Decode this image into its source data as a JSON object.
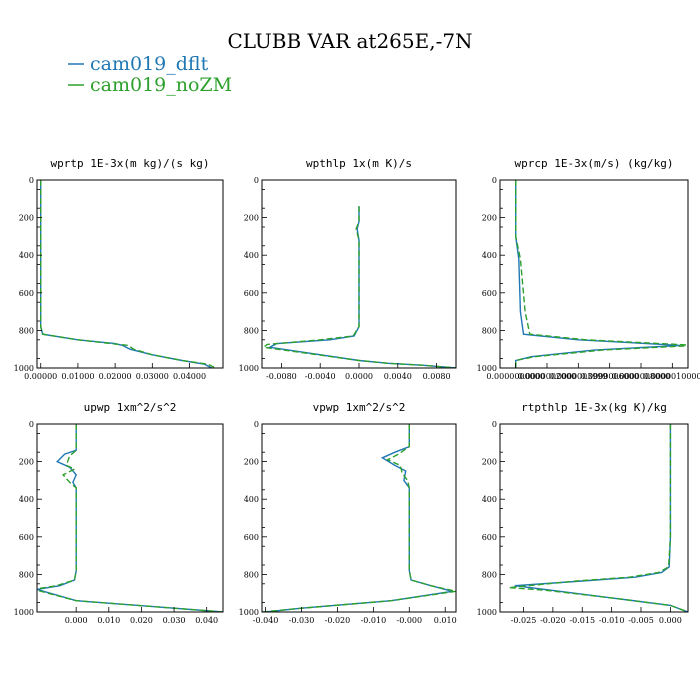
{
  "figure": {
    "title": "CLUBB VAR at265E,-7N",
    "legend": [
      {
        "label": "cam019_dflt",
        "color": "#1f77b4",
        "dash": false
      },
      {
        "label": "cam019_noZM",
        "color": "#2ca02c",
        "dash": true
      }
    ]
  },
  "chart_data": [
    {
      "type": "line",
      "title": "wprtp  1E-3x(m kg)/(s kg)",
      "xlim": [
        -0.001,
        0.049
      ],
      "ylim": [
        1000,
        0
      ],
      "y_inverted": true,
      "xticks": [
        0,
        0.01,
        0.02,
        0.03,
        0.04
      ],
      "xtick_labels": [
        "0.00000",
        "0.01000",
        "0.02000",
        "0.03000",
        "0.04000"
      ],
      "yticks": [
        0,
        200,
        400,
        600,
        800,
        1000
      ],
      "ytick_labels": [
        "0",
        "200",
        "400",
        "600",
        "800",
        "1000"
      ],
      "series": [
        {
          "name": "cam019_dflt",
          "x": [
            0,
            0,
            0,
            0.0005,
            0.01,
            0.02,
            0.022,
            0.024,
            0.03,
            0.038,
            0.044,
            0.046
          ],
          "y": [
            0,
            600,
            780,
            820,
            850,
            870,
            880,
            900,
            930,
            960,
            980,
            1000
          ]
        },
        {
          "name": "cam019_noZM",
          "x": [
            0,
            0,
            0,
            0.0006,
            0.01,
            0.019,
            0.0235,
            0.025,
            0.03,
            0.038,
            0.045,
            0.047
          ],
          "y": [
            0,
            600,
            780,
            820,
            850,
            870,
            880,
            900,
            930,
            960,
            980,
            1000
          ]
        }
      ]
    },
    {
      "type": "line",
      "title": "wpthlp  1x(m K)/s",
      "xlim": [
        -0.01,
        0.01
      ],
      "ylim": [
        1000,
        0
      ],
      "y_inverted": true,
      "xticks": [
        -0.008,
        -0.004,
        0,
        0.004,
        0.008
      ],
      "xtick_labels": [
        "-0.0080",
        "-0.0040",
        "0.0000",
        "0.0040",
        "0.0080"
      ],
      "yticks": [
        0,
        200,
        400,
        600,
        800,
        1000
      ],
      "ytick_labels": [
        "0",
        "200",
        "400",
        "600",
        "800",
        "1000"
      ],
      "series": [
        {
          "name": "cam019_dflt",
          "x": [
            0,
            0,
            -0.0002,
            0,
            0,
            -0.0005,
            -0.003,
            -0.0085,
            -0.0092,
            0,
            0.003,
            0.0065,
            0.01
          ],
          "y": [
            140,
            220,
            260,
            320,
            780,
            830,
            850,
            870,
            890,
            960,
            975,
            985,
            1000
          ]
        },
        {
          "name": "cam019_noZM",
          "x": [
            0,
            0,
            -0.0003,
            0,
            0,
            -0.0006,
            -0.004,
            -0.0095,
            -0.0098,
            0,
            0.003,
            0.0065,
            0.01
          ],
          "y": [
            140,
            220,
            260,
            320,
            780,
            830,
            850,
            875,
            890,
            960,
            975,
            985,
            1000
          ]
        }
      ]
    },
    {
      "type": "line",
      "title": "wprcp  1E-3x(m/s) (kg/kg)",
      "xlim": [
        -1e-07,
        1.1e-06
      ],
      "ylim": [
        1000,
        0
      ],
      "y_inverted": true,
      "xticks": [
        0,
        2e-07,
        4e-07,
        6e-07,
        8e-07,
        1e-06
      ],
      "xtick_labels": [
        "0.0000000000",
        "0.0000002000",
        "0.0000003999",
        "0.0000006000",
        "0.0000008000",
        "0.0000010000"
      ],
      "yticks": [
        0,
        200,
        400,
        600,
        800,
        1000
      ],
      "ytick_labels": [
        "0",
        "200",
        "400",
        "600",
        "800",
        "1000"
      ],
      "series": [
        {
          "name": "cam019_dflt",
          "x": [
            0,
            0,
            2e-08,
            3e-08,
            5e-08,
            4e-07,
            1.05e-06,
            5e-07,
            1e-07,
            0,
            0
          ],
          "y": [
            0,
            300,
            420,
            700,
            820,
            850,
            880,
            905,
            940,
            960,
            1000
          ]
        },
        {
          "name": "cam019_noZM",
          "x": [
            0,
            0,
            3e-08,
            6e-08,
            9e-08,
            4.5e-07,
            1.15e-06,
            5.5e-07,
            1.2e-07,
            0,
            0
          ],
          "y": [
            0,
            300,
            420,
            700,
            820,
            850,
            880,
            905,
            940,
            960,
            1000
          ]
        }
      ]
    },
    {
      "type": "line",
      "title": "upwp  1xm^2/s^2",
      "xlim": [
        -0.012,
        0.045
      ],
      "ylim": [
        1000,
        0
      ],
      "y_inverted": true,
      "xticks": [
        0,
        0.01,
        0.02,
        0.03,
        0.04
      ],
      "xtick_labels": [
        "0.000",
        "0.010",
        "0.020",
        "0.030",
        "0.040"
      ],
      "yticks": [
        0,
        200,
        400,
        600,
        800,
        1000
      ],
      "ytick_labels": [
        "0",
        "200",
        "400",
        "600",
        "800",
        "1000"
      ],
      "series": [
        {
          "name": "cam019_dflt",
          "x": [
            0,
            0,
            -0.0035,
            -0.0058,
            -0.002,
            0,
            -0.001,
            0,
            0,
            -0.0005,
            -0.005,
            -0.012,
            0,
            0.03,
            0.045
          ],
          "y": [
            0,
            140,
            160,
            200,
            230,
            270,
            310,
            340,
            780,
            830,
            860,
            880,
            940,
            980,
            1000
          ]
        },
        {
          "name": "cam019_noZM",
          "x": [
            0,
            0,
            -0.002,
            -0.003,
            -0.0005,
            -0.004,
            -0.002,
            0,
            0,
            -0.0005,
            -0.006,
            -0.013,
            0,
            0.03,
            0.045
          ],
          "y": [
            0,
            140,
            170,
            220,
            240,
            270,
            310,
            340,
            780,
            830,
            860,
            880,
            940,
            980,
            1000
          ]
        }
      ]
    },
    {
      "type": "line",
      "title": "vpwp  1xm^2/s^2",
      "xlim": [
        -0.041,
        0.013
      ],
      "ylim": [
        1000,
        0
      ],
      "y_inverted": true,
      "xticks": [
        -0.04,
        -0.03,
        -0.02,
        -0.01,
        0,
        0.01
      ],
      "xtick_labels": [
        "-0.040",
        "-0.030",
        "-0.020",
        "-0.010",
        "-0.000",
        "0.010"
      ],
      "yticks": [
        0,
        200,
        400,
        600,
        800,
        1000
      ],
      "ytick_labels": [
        "0",
        "200",
        "400",
        "600",
        "800",
        "1000"
      ],
      "series": [
        {
          "name": "cam019_dflt",
          "x": [
            0,
            0,
            -0.004,
            -0.0075,
            -0.004,
            -0.001,
            -0.0015,
            0,
            0,
            0.0005,
            0.006,
            0.012,
            -0.005,
            -0.03,
            -0.04
          ],
          "y": [
            0,
            120,
            150,
            180,
            220,
            250,
            300,
            340,
            780,
            830,
            860,
            890,
            940,
            980,
            1000
          ]
        },
        {
          "name": "cam019_noZM",
          "x": [
            0,
            0,
            -0.003,
            -0.006,
            -0.0025,
            -0.002,
            -0.0005,
            0,
            0,
            0.0005,
            0.006,
            0.013,
            -0.005,
            -0.03,
            -0.041
          ],
          "y": [
            0,
            120,
            160,
            190,
            220,
            260,
            300,
            340,
            780,
            830,
            860,
            890,
            940,
            980,
            1000
          ]
        }
      ]
    },
    {
      "type": "line",
      "title": "rtpthlp  1E-3x(kg K)/kg",
      "xlim": [
        -0.029,
        0.003
      ],
      "ylim": [
        1000,
        0
      ],
      "y_inverted": true,
      "xticks": [
        -0.025,
        -0.02,
        -0.015,
        -0.01,
        -0.005,
        0
      ],
      "xtick_labels": [
        "-0.025",
        "-0.020",
        "-0.015",
        "-0.010",
        "-0.005",
        "0.000"
      ],
      "yticks": [
        0,
        200,
        400,
        600,
        800,
        1000
      ],
      "ytick_labels": [
        "0",
        "200",
        "400",
        "600",
        "800",
        "1000"
      ],
      "series": [
        {
          "name": "cam019_dflt",
          "x": [
            0,
            0,
            -0.0002,
            -0.0015,
            -0.006,
            -0.015,
            -0.0265,
            -0.02,
            -0.01,
            0,
            0.003
          ],
          "y": [
            0,
            600,
            760,
            790,
            815,
            835,
            860,
            885,
            925,
            965,
            1000
          ]
        },
        {
          "name": "cam019_noZM",
          "x": [
            0,
            0,
            -0.0003,
            -0.002,
            -0.007,
            -0.016,
            -0.0275,
            -0.021,
            -0.01,
            0,
            0.003
          ],
          "y": [
            0,
            600,
            760,
            790,
            815,
            835,
            870,
            885,
            925,
            965,
            1000
          ]
        }
      ]
    }
  ]
}
